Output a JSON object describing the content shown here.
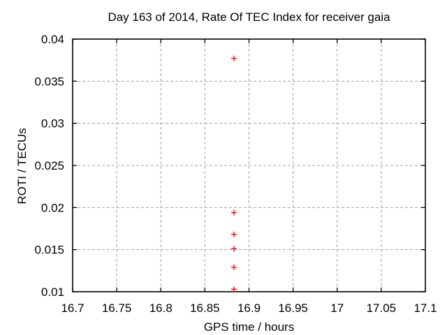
{
  "window": {
    "background": "#ffffff"
  },
  "chart_data": {
    "type": "scatter",
    "title": "Day 163 of 2014, Rate Of TEC Index for receiver gaia",
    "xlabel": "GPS time / hours",
    "ylabel": "ROTI / TECUs",
    "xlim": [
      16.7,
      17.1
    ],
    "ylim": [
      0.01,
      0.04
    ],
    "xticks": [
      16.7,
      16.75,
      16.8,
      16.85,
      16.9,
      16.95,
      17,
      17.05,
      17.1
    ],
    "xtick_labels": [
      "16.7",
      "16.75",
      "16.8",
      "16.85",
      "16.9",
      "16.95",
      "17",
      "17.05",
      "17.1"
    ],
    "yticks": [
      0.01,
      0.015,
      0.02,
      0.025,
      0.03,
      0.035,
      0.04
    ],
    "ytick_labels": [
      "0.01",
      "0.015",
      "0.02",
      "0.025",
      "0.03",
      "0.035",
      "0.04"
    ],
    "grid": true,
    "legend": "none",
    "series": [
      {
        "name": "ROTI",
        "marker": "plus",
        "color": "#ff0000",
        "points": [
          {
            "x": 16.883,
            "y": 0.0377
          },
          {
            "x": 16.883,
            "y": 0.0194
          },
          {
            "x": 16.883,
            "y": 0.0168
          },
          {
            "x": 16.883,
            "y": 0.0151
          },
          {
            "x": 16.883,
            "y": 0.0129
          },
          {
            "x": 16.883,
            "y": 0.0103
          }
        ]
      }
    ],
    "colors": {
      "grid": "#a0a0a0",
      "axis": "#000000",
      "marker": "#ff0000",
      "background": "#ffffff"
    }
  }
}
